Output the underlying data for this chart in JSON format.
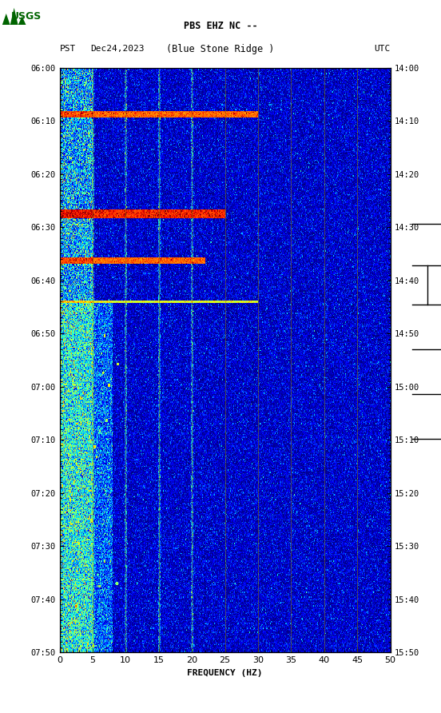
{
  "title_line1": "PBS EHZ NC --",
  "title_line2": "(Blue Stone Ridge )",
  "left_label": "PST",
  "date_label": "Dec24,2023",
  "right_label": "UTC",
  "left_yticks": [
    "06:00",
    "06:10",
    "06:20",
    "06:30",
    "06:40",
    "06:50",
    "07:00",
    "07:10",
    "07:20",
    "07:30",
    "07:40",
    "07:50"
  ],
  "right_yticks": [
    "14:00",
    "14:10",
    "14:20",
    "14:30",
    "14:40",
    "14:50",
    "15:00",
    "15:10",
    "15:20",
    "15:30",
    "15:40",
    "15:50"
  ],
  "xlabel": "FREQUENCY (HZ)",
  "xlim": [
    0,
    50
  ],
  "xticks": [
    0,
    5,
    10,
    15,
    20,
    25,
    30,
    35,
    40,
    45,
    50
  ],
  "freq_gridlines": [
    5,
    10,
    15,
    20,
    25,
    30,
    35,
    40,
    45
  ],
  "fig_width": 5.52,
  "fig_height": 8.92,
  "usgs_logo_color": "#006400"
}
